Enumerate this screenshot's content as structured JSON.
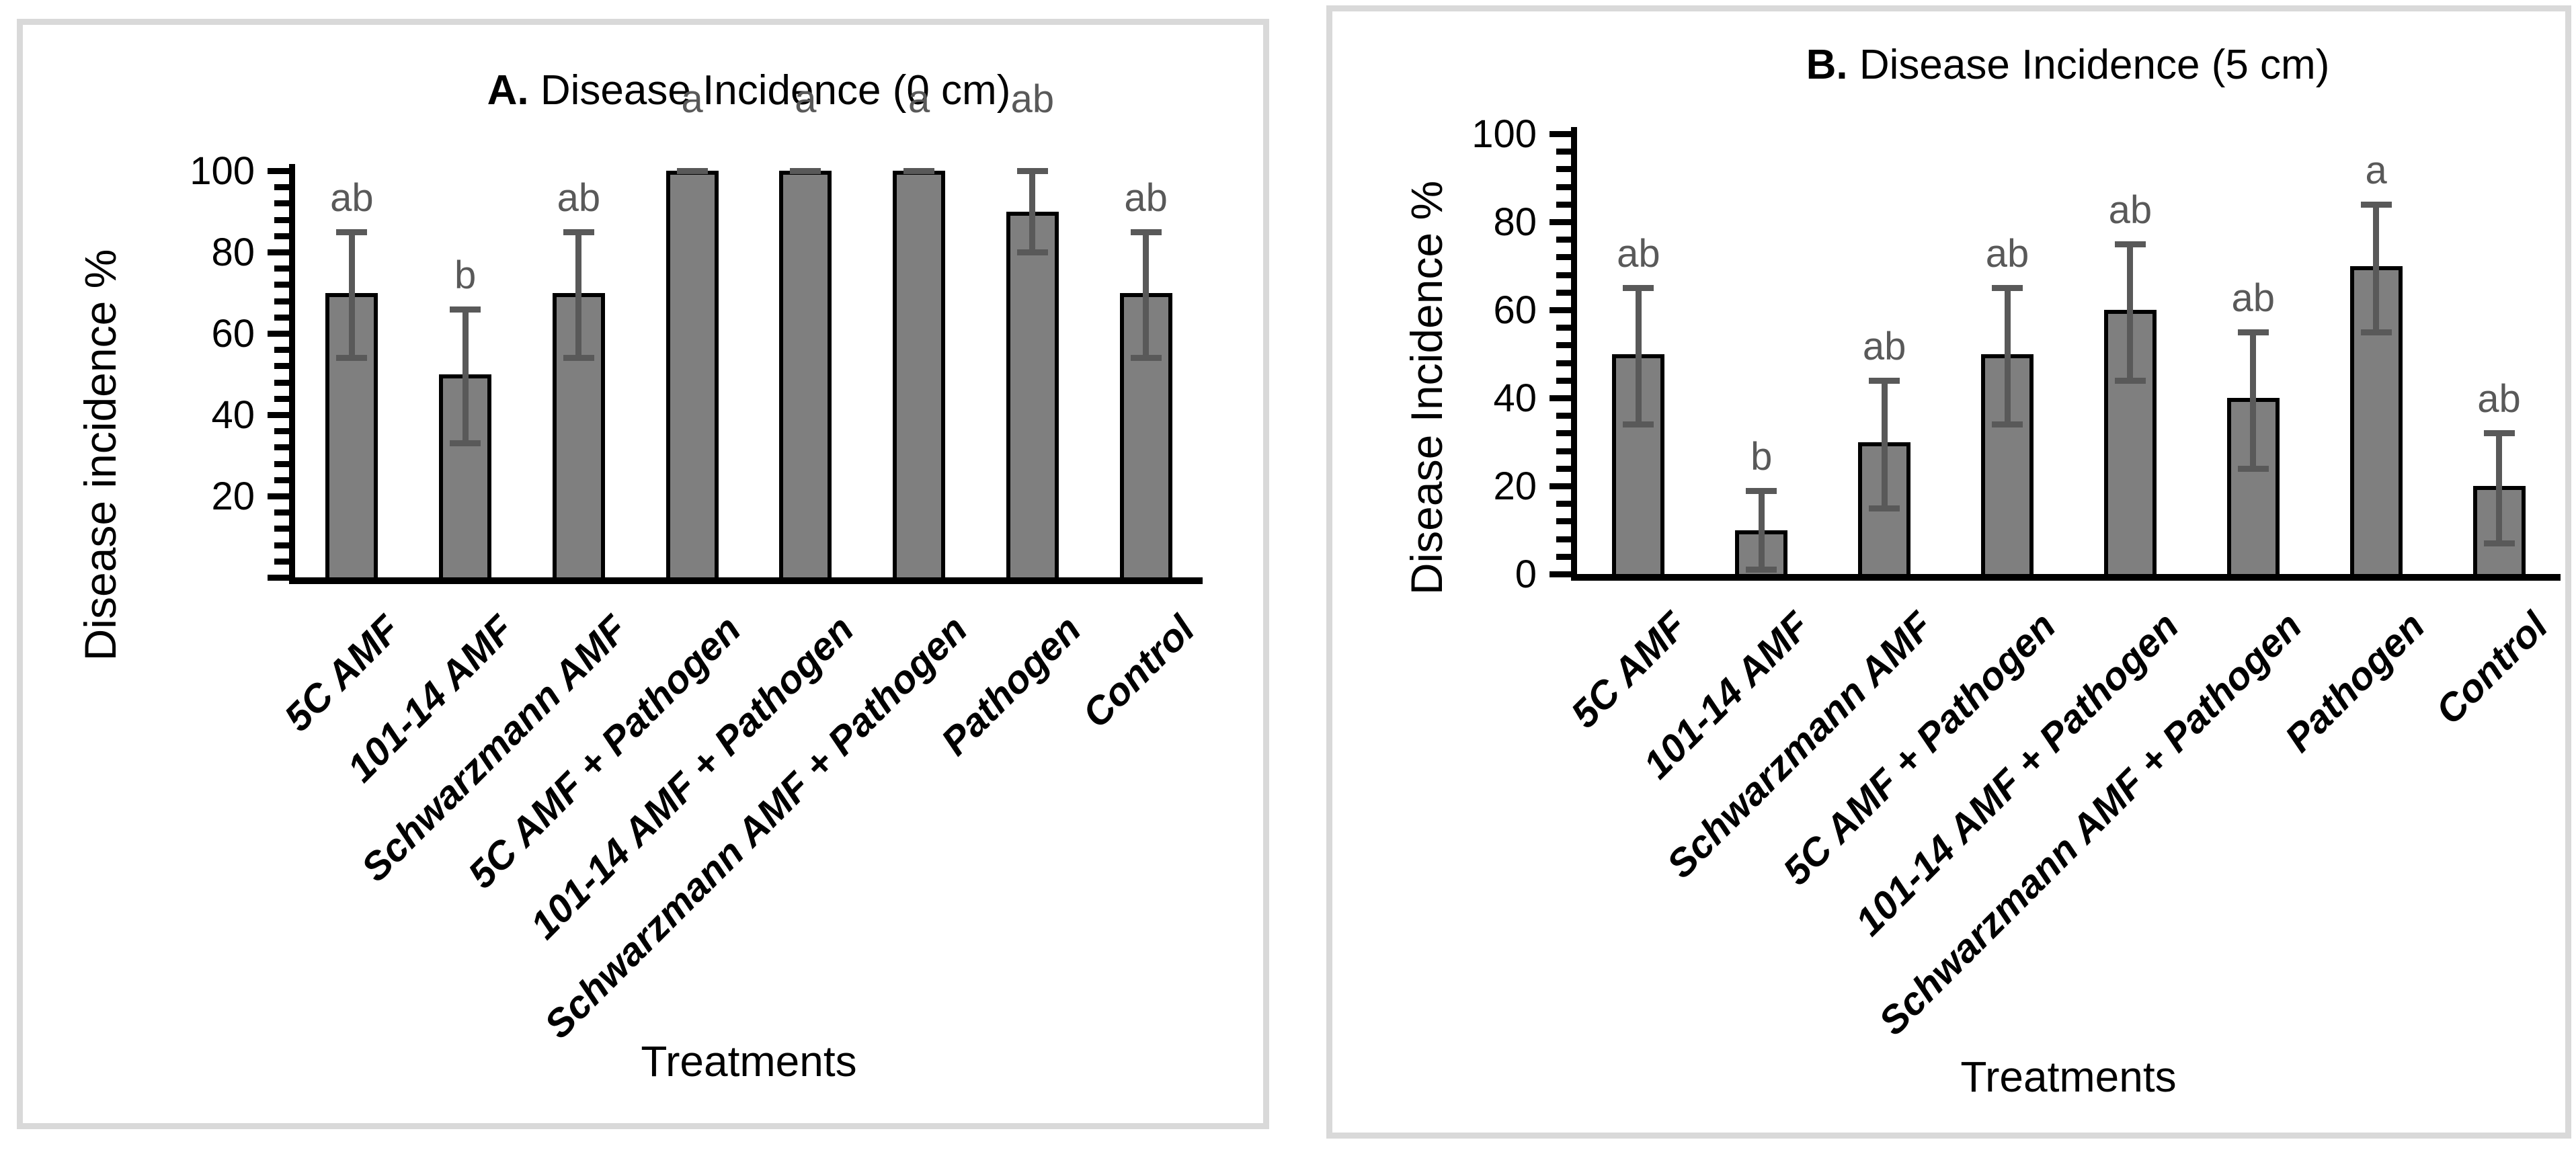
{
  "figure": {
    "background_color": "#ffffff",
    "panel_border_color": "#d9d9d9",
    "axis_color": "#000000"
  },
  "chart_data": [
    {
      "panel_label": "A",
      "type": "bar",
      "title_prefix": "A.",
      "title_rest": " Disease Incidence (0 cm)",
      "ylabel": "Disease incidence %",
      "xlabel": "Treatments",
      "categories": [
        "5C AMF",
        "101-14 AMF",
        "Schwarzmann AMF",
        "5C AMF + Pathogen",
        "101-14 AMF + Pathogen",
        "Schwarzmann AMF + Pathogen",
        "Pathogen",
        "Control"
      ],
      "values": [
        70,
        50,
        70,
        100,
        100,
        100,
        90,
        70
      ],
      "err_low": [
        54,
        33,
        54,
        100,
        100,
        100,
        80,
        54
      ],
      "err_high": [
        85,
        66,
        85,
        100,
        100,
        100,
        100,
        85
      ],
      "sig_letters": [
        "ab",
        "b",
        "ab",
        "a",
        "a",
        "a",
        "ab",
        "ab"
      ],
      "ylim": [
        0,
        100
      ],
      "ytick_labels": [
        100,
        80,
        60,
        40,
        20
      ],
      "major_tick_step": 20,
      "minor_tick_step": 4,
      "grid": "off",
      "legend": "none",
      "bar_color": "#7f7f7f",
      "bar_border_color": "#000000",
      "error_bar_color": "#595959",
      "letter_color": "#595959"
    },
    {
      "panel_label": "B",
      "type": "bar",
      "title_prefix": "B.",
      "title_rest": " Disease Incidence (5 cm)",
      "ylabel": "Disease Incidence %",
      "xlabel": "Treatments",
      "categories": [
        "5C AMF",
        "101-14 AMF",
        "Schwarzmann AMF",
        "5C AMF + Pathogen",
        "101-14 AMF + Pathogen",
        "Schwarzmann AMF + Pathogen",
        "Pathogen",
        "Control"
      ],
      "values": [
        50,
        10,
        30,
        50,
        60,
        40,
        70,
        20
      ],
      "err_low": [
        34,
        1,
        15,
        34,
        44,
        24,
        55,
        7
      ],
      "err_high": [
        65,
        19,
        44,
        65,
        75,
        55,
        84,
        32
      ],
      "sig_letters": [
        "ab",
        "b",
        "ab",
        "ab",
        "ab",
        "ab",
        "a",
        "ab"
      ],
      "ylim": [
        0,
        100
      ],
      "ytick_labels": [
        100,
        80,
        60,
        40,
        20,
        0
      ],
      "major_tick_step": 20,
      "minor_tick_step": 4,
      "grid": "off",
      "legend": "none",
      "bar_color": "#7f7f7f",
      "bar_border_color": "#000000",
      "error_bar_color": "#595959",
      "letter_color": "#595959"
    }
  ]
}
